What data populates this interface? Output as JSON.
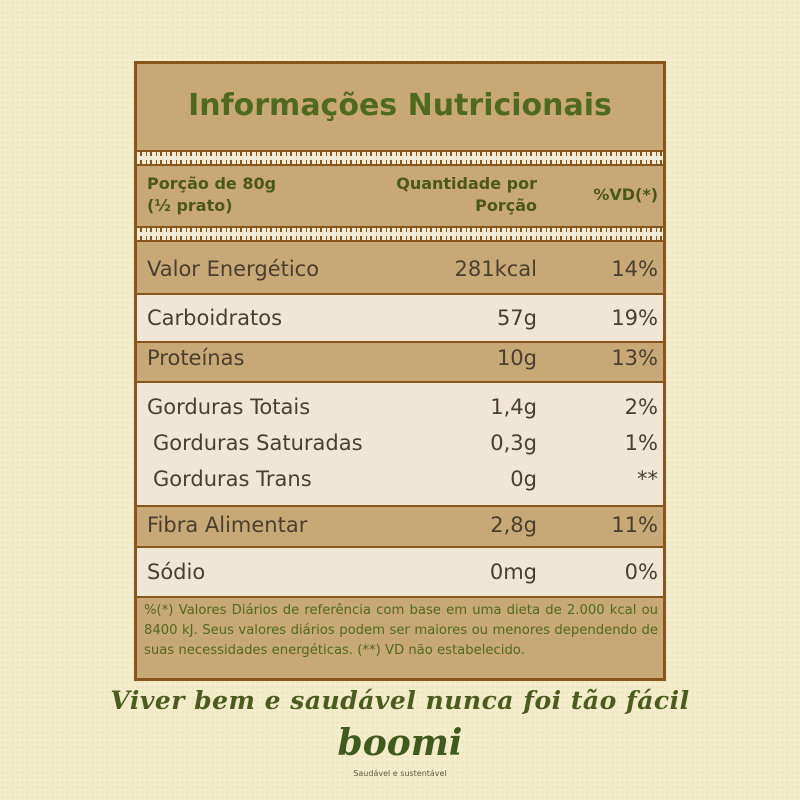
{
  "title": "Informações Nutricionais",
  "header": {
    "portion": [
      "Porção de 80g",
      "(½ prato)"
    ],
    "quantity": [
      "Quantidade por",
      "Porção"
    ],
    "dv": "%VD(*)"
  },
  "rows": [
    [
      "Valor Energético",
      "281kcal",
      "14%"
    ],
    [
      "Carboidratos",
      "57g",
      "19%"
    ],
    [
      "Proteínas",
      "10g",
      "13%"
    ],
    [
      "Gorduras Totais",
      "1,4g",
      "2%"
    ],
    [
      "Gorduras Saturadas",
      "0,3g",
      "1%"
    ],
    [
      "Gorduras Trans",
      "0g",
      "**"
    ],
    [
      "Fibra Alimentar",
      "2,8g",
      "11%"
    ],
    [
      "Sódio",
      "0mg",
      "0%"
    ]
  ],
  "footnote": "%(*) Valores Diários de referência com base em uma dieta de 2.000 kcal ou 8400 kJ. Seus valores diários podem ser maiores ou menores dependendo de suas necessidades energéticas. (**) VD não estabelecido.",
  "tagline": "Viver bem e saudável nunca foi tão fácil",
  "brand": {
    "name": "boomi",
    "slogan": "Saudável e sustentável"
  }
}
